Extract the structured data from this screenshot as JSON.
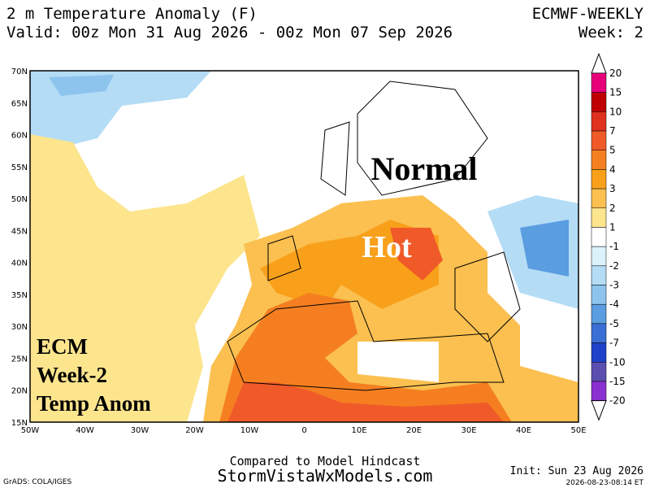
{
  "header": {
    "title": "2 m Temperature Anomaly (F)",
    "valid": "Valid: 00z Mon 31 Aug 2026 - 00z Mon 07 Sep 2026",
    "model": "ECMWF-WEEKLY",
    "week": "Week: 2"
  },
  "map": {
    "lat_labels": [
      "70N",
      "65N",
      "60N",
      "55N",
      "50N",
      "45N",
      "40N",
      "35N",
      "30N",
      "25N",
      "20N",
      "15N"
    ],
    "lon_labels": [
      "50W",
      "40W",
      "30W",
      "20W",
      "10W",
      "0",
      "10E",
      "20E",
      "30E",
      "40E",
      "50E"
    ],
    "annotations": [
      "Normal",
      "Hot"
    ],
    "overlay": [
      "ECM",
      "Week-2",
      "Temp Anom"
    ]
  },
  "colorbar": {
    "labels": [
      20,
      15,
      10,
      7,
      5,
      4,
      3,
      2,
      1,
      -1,
      -2,
      -3,
      -4,
      -5,
      -7,
      -10,
      -15,
      -20
    ],
    "colors": [
      "#ffffff",
      "#e8007a",
      "#c00000",
      "#e0301e",
      "#f05a28",
      "#f57f20",
      "#f9a01b",
      "#fbc050",
      "#fde58e",
      "#ffffff",
      "#dcf2fb",
      "#b4dcf5",
      "#8cc4ee",
      "#5a9de0",
      "#3a6fd6",
      "#1f40c8",
      "#5a4fb0",
      "#8a30d0",
      "#ffffff"
    ]
  },
  "footer": {
    "hindcast": "Compared to Model Hindcast",
    "site": "StormVistaWxModels.com",
    "credit": "GrADS: COLA/IGES",
    "init": "Init: Sun 23 Aug 2026",
    "stamp": "2026-08-23-08:14 ET"
  }
}
